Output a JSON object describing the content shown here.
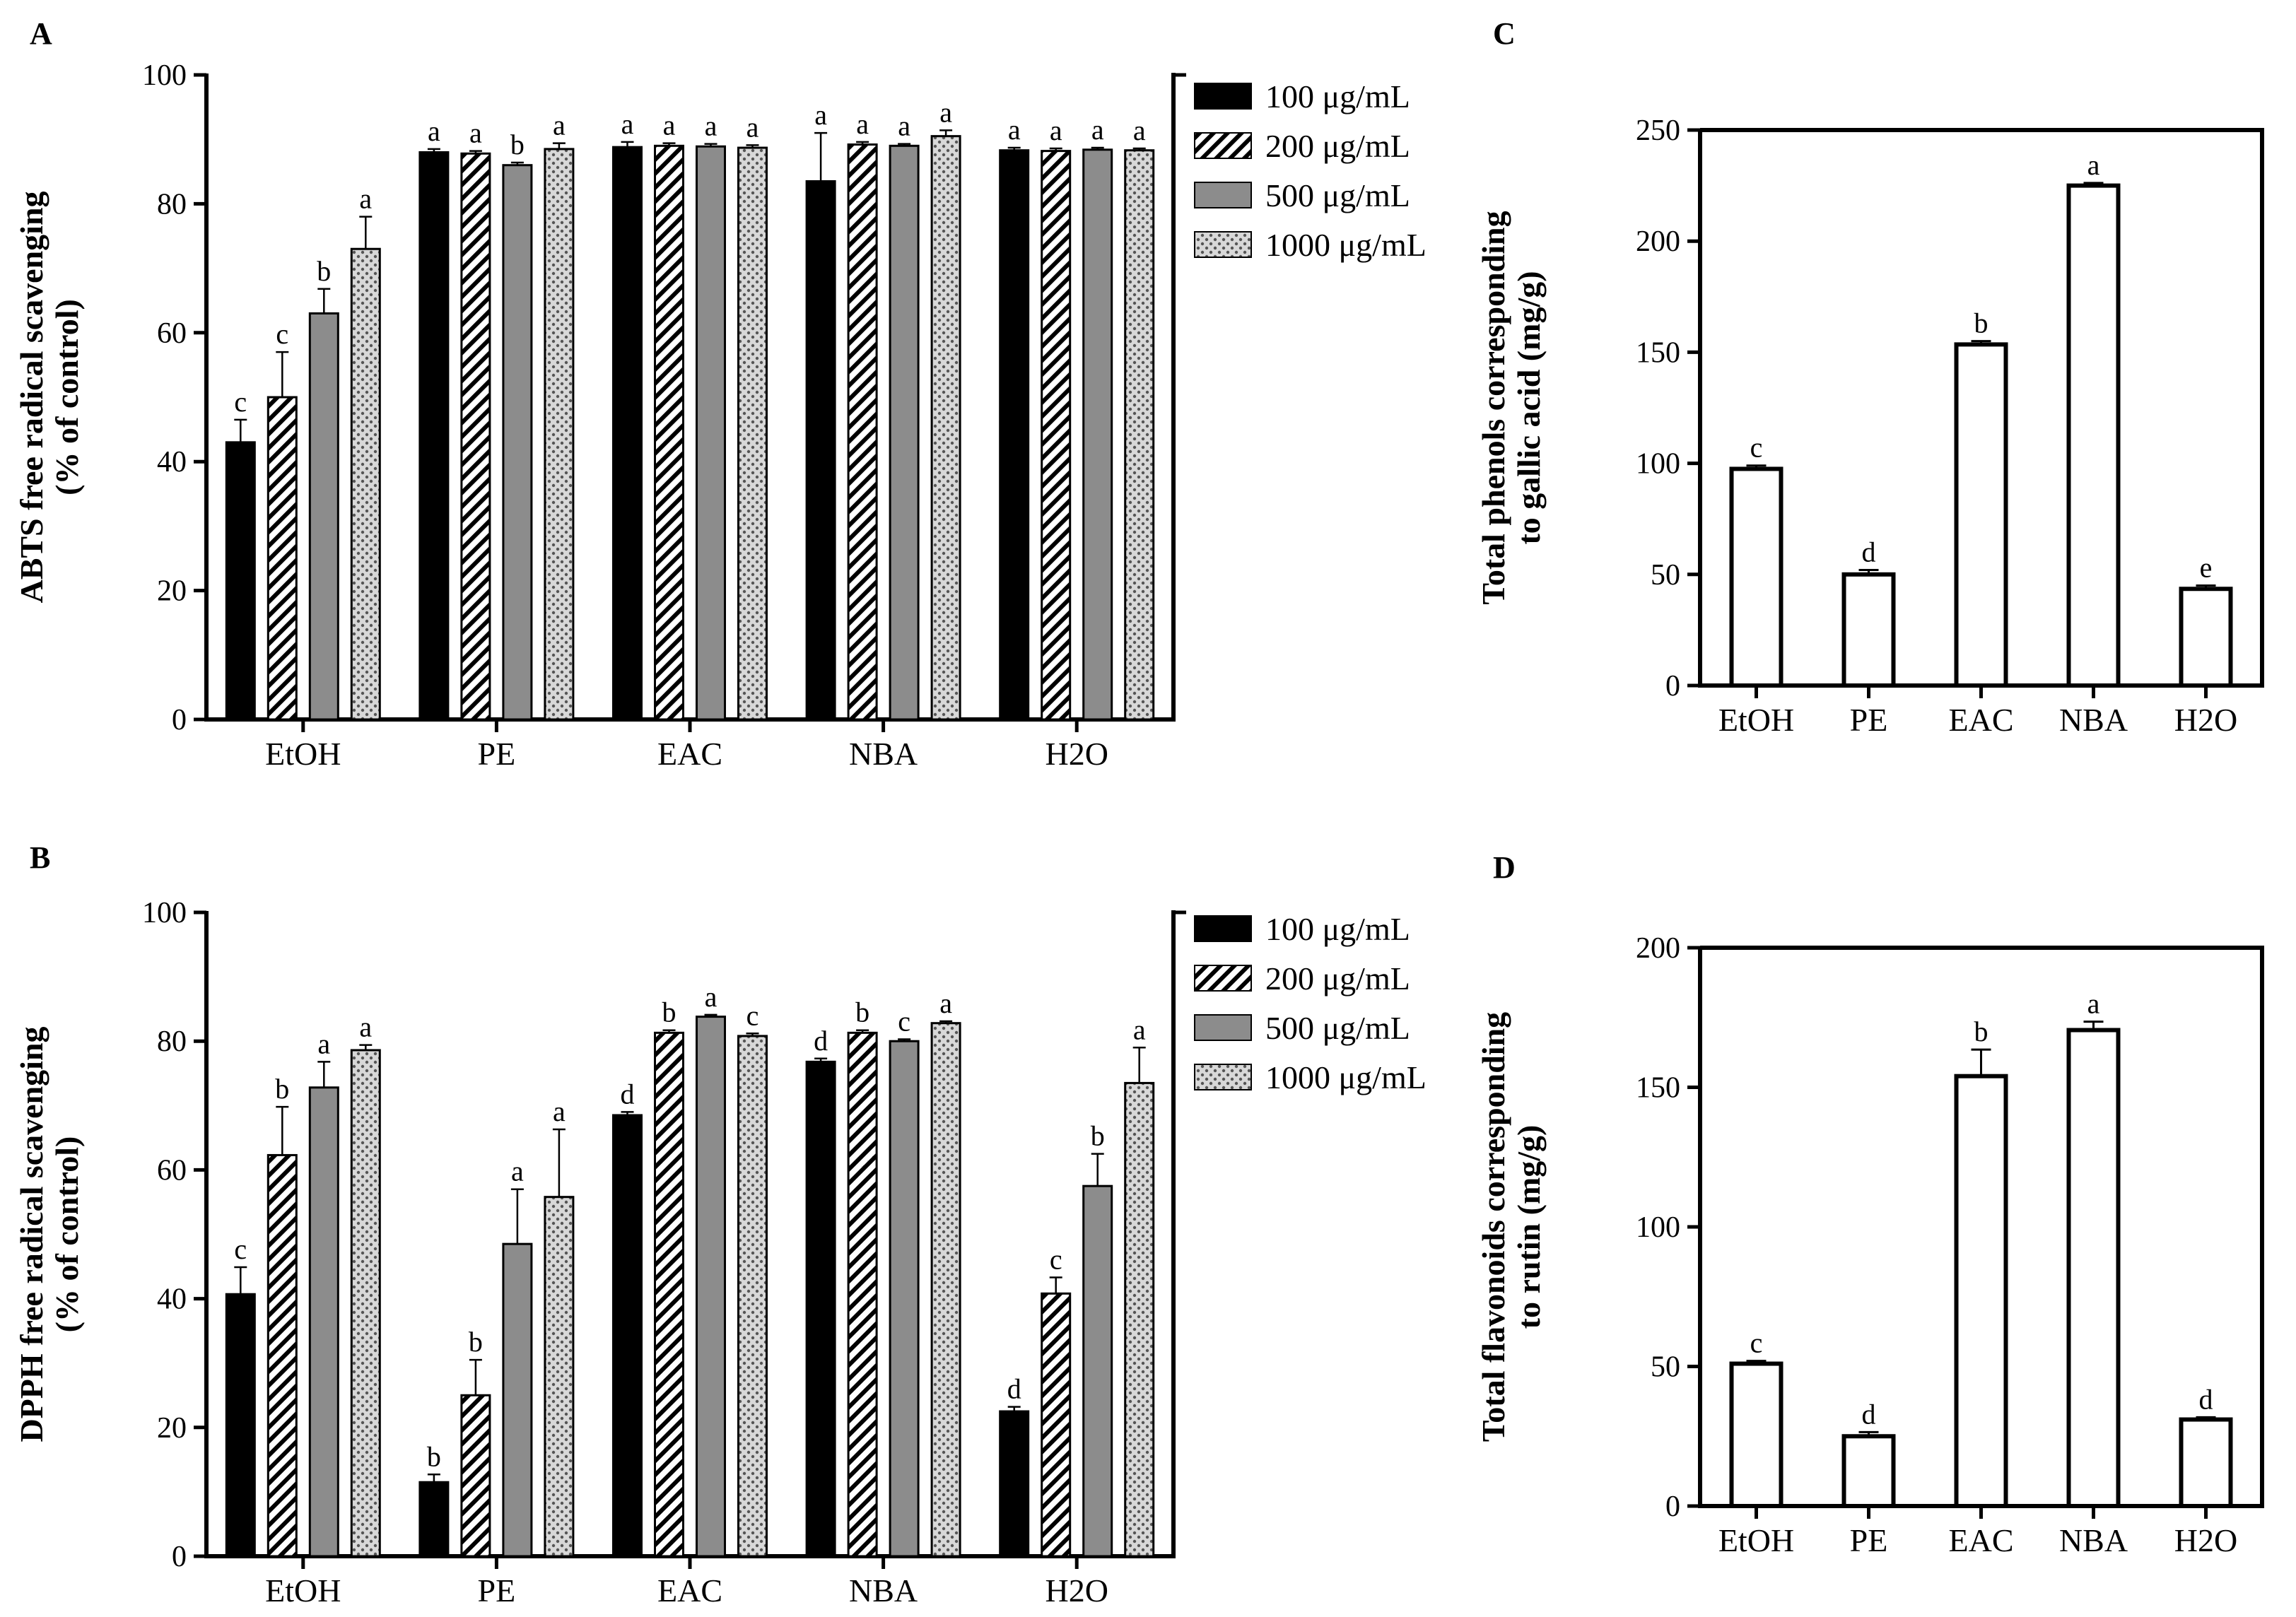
{
  "legend": {
    "series": [
      "100 μg/mL",
      "200 μg/mL",
      "500 μg/mL",
      "1000 μg/mL"
    ],
    "fills": [
      "solid-black",
      "diagonal-hatch",
      "solid-gray",
      "dotted-pattern"
    ],
    "placement": "right"
  },
  "chart_data": [
    {
      "panel": "A",
      "type": "bar",
      "title": "",
      "ylabel": [
        "ABTS free radical scavenging",
        "(% of control)"
      ],
      "xlabel": "",
      "categories": [
        "EtOH",
        "PE",
        "EAC",
        "NBA",
        "H2O"
      ],
      "ylim": [
        0,
        100
      ],
      "yticks": [
        0,
        20,
        40,
        60,
        80,
        100
      ],
      "series": [
        {
          "name": "100 μg/mL",
          "values": [
            43,
            88,
            88.8,
            83.5,
            88.3
          ],
          "errors": [
            3.5,
            0.5,
            0.8,
            7.5,
            0.4
          ],
          "letters": [
            "c",
            "a",
            "a",
            "a",
            "a"
          ]
        },
        {
          "name": "200 μg/mL",
          "values": [
            50,
            87.8,
            89,
            89.2,
            88.2
          ],
          "errors": [
            7,
            0.4,
            0.4,
            0.4,
            0.4
          ],
          "letters": [
            "c",
            "a",
            "a",
            "a",
            "a"
          ]
        },
        {
          "name": "500 μg/mL",
          "values": [
            63,
            86,
            88.9,
            89,
            88.4
          ],
          "errors": [
            3.8,
            0.4,
            0.4,
            0.3,
            0.3
          ],
          "letters": [
            "b",
            "b",
            "a",
            "a",
            "a"
          ]
        },
        {
          "name": "1000 μg/mL",
          "values": [
            73,
            88.5,
            88.7,
            90.5,
            88.3
          ],
          "errors": [
            5,
            0.9,
            0.4,
            0.9,
            0.3
          ],
          "letters": [
            "a",
            "a",
            "a",
            "a",
            "a"
          ]
        }
      ]
    },
    {
      "panel": "B",
      "type": "bar",
      "title": "",
      "ylabel": [
        "DPPH free radical scavenging",
        "(% of control)"
      ],
      "xlabel": "",
      "categories": [
        "EtOH",
        "PE",
        "EAC",
        "NBA",
        "H2O"
      ],
      "ylim": [
        0,
        100
      ],
      "yticks": [
        0,
        20,
        40,
        60,
        80,
        100
      ],
      "series": [
        {
          "name": "100 μg/mL",
          "values": [
            40.7,
            11.5,
            68.5,
            76.8,
            22.5
          ],
          "errors": [
            4.2,
            1.2,
            0.5,
            0.5,
            0.7
          ],
          "letters": [
            "c",
            "b",
            "d",
            "d",
            "d"
          ]
        },
        {
          "name": "200 μg/mL",
          "values": [
            62.3,
            25,
            81.3,
            81.3,
            40.8
          ],
          "errors": [
            7.5,
            5.5,
            0.4,
            0.4,
            2.5
          ],
          "letters": [
            "b",
            "b",
            "b",
            "b",
            "c"
          ]
        },
        {
          "name": "500 μg/mL",
          "values": [
            72.8,
            48.5,
            83.8,
            80,
            57.5
          ],
          "errors": [
            4,
            8.5,
            0.3,
            0.3,
            5
          ],
          "letters": [
            "a",
            "a",
            "a",
            "c",
            "b"
          ]
        },
        {
          "name": "1000 μg/mL",
          "values": [
            78.6,
            55.8,
            80.8,
            82.8,
            73.5
          ],
          "errors": [
            0.8,
            10.5,
            0.4,
            0.3,
            5.5
          ],
          "letters": [
            "a",
            "a",
            "c",
            "a",
            "a"
          ]
        }
      ]
    },
    {
      "panel": "C",
      "type": "bar",
      "title": "",
      "ylabel": [
        "Total phenols corresponding",
        "to gallic acid (mg/g)"
      ],
      "xlabel": "",
      "categories": [
        "EtOH",
        "PE",
        "EAC",
        "NBA",
        "H2O"
      ],
      "ylim": [
        0,
        250
      ],
      "yticks": [
        0,
        50,
        100,
        150,
        200,
        250
      ],
      "values": [
        97.5,
        50,
        153.5,
        225,
        43.5
      ],
      "errors": [
        1.5,
        2,
        1.5,
        1.2,
        1.5
      ],
      "letters": [
        "c",
        "d",
        "b",
        "a",
        "e"
      ]
    },
    {
      "panel": "D",
      "type": "bar",
      "title": "",
      "ylabel": [
        "Total flavonoids corresponding",
        "to rutin (mg/g)"
      ],
      "xlabel": "",
      "categories": [
        "EtOH",
        "PE",
        "EAC",
        "NBA",
        "H2O"
      ],
      "ylim": [
        0,
        200
      ],
      "yticks": [
        0,
        50,
        100,
        150,
        200
      ],
      "values": [
        51,
        25,
        154,
        170.5,
        31
      ],
      "errors": [
        1,
        1.5,
        9.5,
        3,
        0.8
      ],
      "letters": [
        "c",
        "d",
        "b",
        "a",
        "d"
      ]
    }
  ]
}
